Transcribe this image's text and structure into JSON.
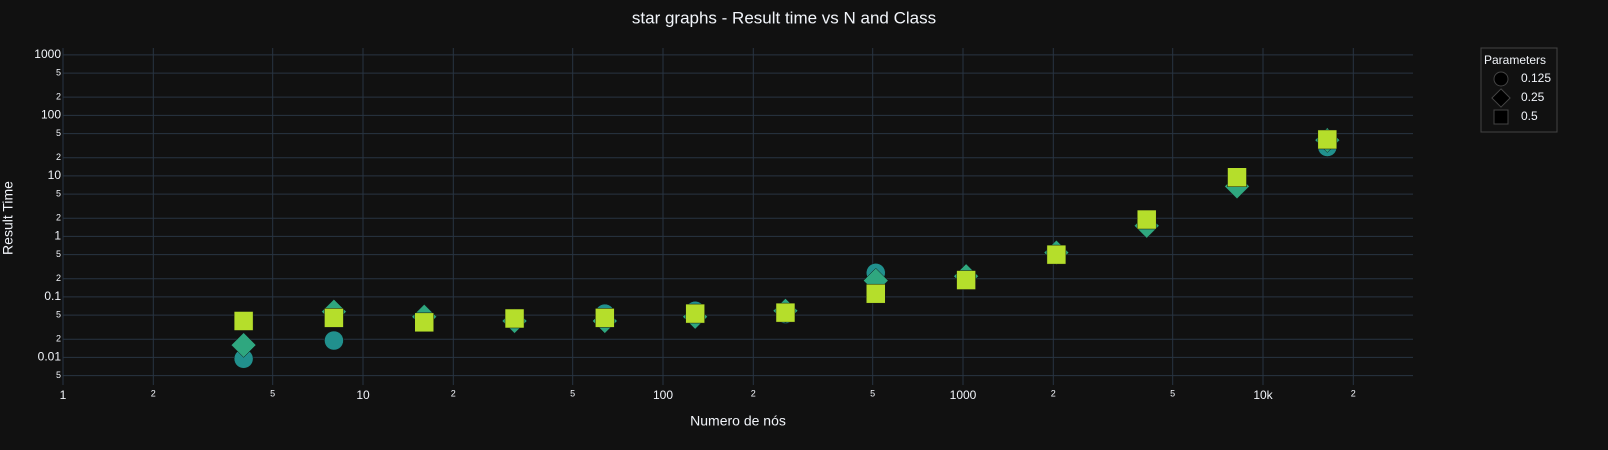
{
  "chart_data": {
    "type": "scatter",
    "title": "star graphs - Result time vs N and Class",
    "x_label": "Numero de nós",
    "y_label": "Result Time",
    "xscale": "log",
    "yscale": "log",
    "grid": true,
    "legend_title": "Parameters",
    "legend_position": "top right",
    "x": [
      4,
      8,
      16,
      32,
      64,
      128,
      256,
      512,
      1024,
      2048,
      4096,
      8192,
      16384
    ],
    "series": [
      {
        "name": "0.125",
        "symbol": "circle",
        "color": "#21908d",
        "values": [
          0.0095,
          0.019,
          0.04,
          0.042,
          0.053,
          0.059,
          0.052,
          0.25,
          0.19,
          0.5,
          1.8,
          8.5,
          30
        ]
      },
      {
        "name": "0.25",
        "symbol": "diamond",
        "color": "#2fa77f",
        "values": [
          0.016,
          0.057,
          0.047,
          0.04,
          0.04,
          0.047,
          0.059,
          0.186,
          0.22,
          0.54,
          1.5,
          6.7,
          39
        ]
      },
      {
        "name": "0.5",
        "symbol": "square",
        "color": "#b5de2b",
        "values": [
          0.04,
          0.045,
          0.038,
          0.044,
          0.045,
          0.053,
          0.055,
          0.113,
          0.19,
          0.5,
          1.9,
          9.5,
          40
        ]
      }
    ],
    "xlim": [
      1,
      31623
    ],
    "xticks": [
      1,
      2,
      5,
      10,
      {
        "value": 20,
        "label": "2"
      },
      {
        "value": 50,
        "label": "5"
      },
      100,
      {
        "value": 200,
        "label": "2"
      },
      {
        "value": 500,
        "label": "5"
      },
      1000,
      {
        "value": 2000,
        "label": "2"
      },
      {
        "value": 5000,
        "label": "5"
      },
      {
        "value": 10000,
        "label": "10k"
      },
      {
        "value": 20000,
        "label": "2"
      }
    ],
    "ylim": [
      0.0035,
      1300
    ],
    "yticks": [
      1000,
      {
        "value": 500,
        "label": "5"
      },
      {
        "value": 200,
        "label": "2"
      },
      100,
      {
        "value": 50,
        "label": "5"
      },
      {
        "value": 20,
        "label": "2"
      },
      10,
      5,
      2,
      1,
      {
        "value": 0.5,
        "label": "5"
      },
      {
        "value": 0.2,
        "label": "2"
      },
      0.1,
      {
        "value": 0.05,
        "label": "5"
      },
      {
        "value": 0.02,
        "label": "2"
      },
      0.01,
      {
        "value": 0.005,
        "label": "5"
      }
    ]
  }
}
